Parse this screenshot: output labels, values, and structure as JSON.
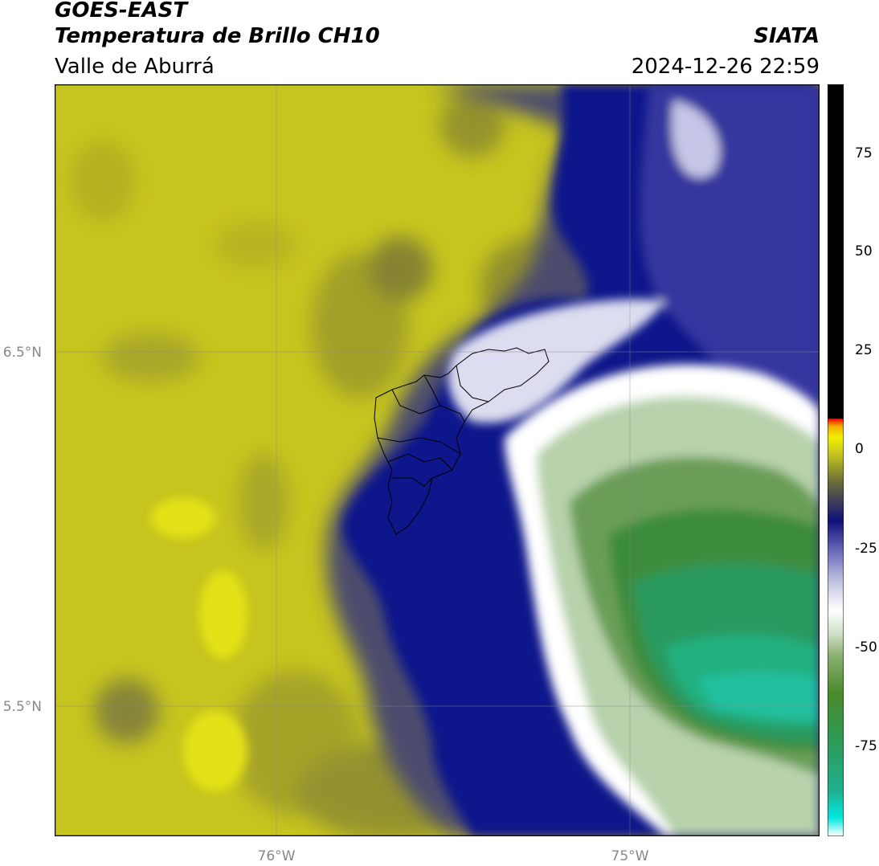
{
  "header": {
    "title_line1": "GOES-EAST",
    "title_line2": "Temperatura de Brillo CH10",
    "subtitle": "Valle de Aburrá",
    "organization": "SIATA",
    "datetime": "2024-12-26 22:59"
  },
  "map": {
    "latitude_labels": [
      "6.5°N",
      "5.5°N"
    ],
    "longitude_labels": [
      "76°W",
      "75°W"
    ],
    "colors": {
      "warm": "#c8c81e",
      "olive": "#9a9a2a",
      "gray_olive": "#6e6e46",
      "dark_blue": "#0c1080",
      "mid_blue": "#3a3a9a",
      "light_lavender": "#c8c8e8",
      "white": "#ffffff",
      "pale_green": "#b4d0a8",
      "green": "#5a9a4a",
      "teal": "#2aa070",
      "cyan": "#20c8b0",
      "border": "#000000"
    }
  },
  "colorbar": {
    "ticks": [
      "75",
      "50",
      "25",
      "0",
      "-25",
      "-50",
      "-75"
    ],
    "stops": [
      "#ffffff",
      "#00e8e0",
      "#20b090",
      "#2e9a54",
      "#4a8a2a",
      "#8ab070",
      "#d0e0c8",
      "#ffffff",
      "#c0c0e0",
      "#6868b8",
      "#10107a",
      "#6a6a3a",
      "#c8c81e",
      "#f0f000",
      "#f0b000",
      "#f06000",
      "#ff0000",
      "#000000"
    ]
  }
}
